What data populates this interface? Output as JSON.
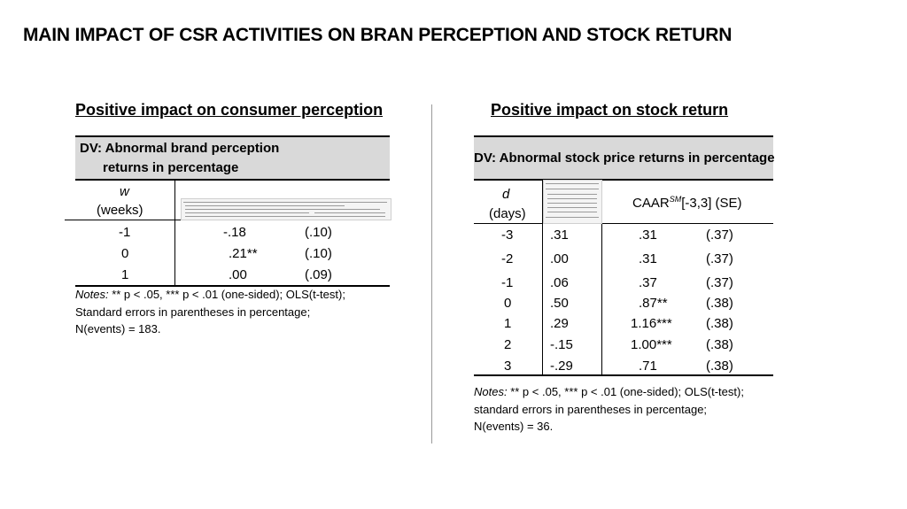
{
  "slide": {
    "title": "MAIN IMPACT OF CSR ACTIVITIES ON BRAN PERCEPTION AND STOCK RETURN"
  },
  "left_panel": {
    "heading": "Positive impact on consumer perception",
    "table_header_line1": "DV: Abnormal brand perception",
    "table_header_line2": "returns in percentage",
    "col1_symbol": "w",
    "col1_unit": "(weeks)",
    "rows": [
      {
        "w": "-1",
        "estimate": "-.18",
        "se": "(.10)"
      },
      {
        "w": "0",
        "estimate": ".21**",
        "se": "(.10)"
      },
      {
        "w": "1",
        "estimate": ".00",
        "se": "(.09)"
      }
    ],
    "notes_label": "Notes:",
    "notes_line1_rest": "** p < .05, *** p < .01 (one-sided); OLS(t-test);",
    "notes_line2": "Standard errors in parentheses in percentage;",
    "notes_line3": "N(events) = 183."
  },
  "right_panel": {
    "heading": "Positive impact on stock return",
    "table_header": "DV: Abnormal stock price returns in percentage",
    "col1_symbol": "d",
    "col1_unit": "(days)",
    "caar_prefix": "CAAR",
    "caar_super": "SM",
    "caar_suffix": "[-3,3]  (SE)",
    "rows": [
      {
        "d": "-3",
        "ar": ".31",
        "caar": ".31",
        "se": "(.37)"
      },
      {
        "d": "-2",
        "ar": ".00",
        "caar": ".31",
        "se": "(.37)"
      },
      {
        "d": "-1",
        "ar": ".06",
        "caar": ".37",
        "se": "(.37)"
      },
      {
        "d": "0",
        "ar": ".50",
        "caar": ".87**",
        "se": "(.38)"
      },
      {
        "d": "1",
        "ar": ".29",
        "caar": "1.16***",
        "se": "(.38)"
      },
      {
        "d": "2",
        "ar": "-.15",
        "caar": "1.00***",
        "se": "(.38)"
      },
      {
        "d": "3",
        "ar": "-.29",
        "caar": ".71",
        "se": "(.38)"
      }
    ],
    "notes_label": "Notes:",
    "notes_line1_rest": "** p < .05, *** p < .01 (one-sided); OLS(t-test);",
    "notes_line2": "standard errors in parentheses in percentage;",
    "notes_line3": "N(events) = 36."
  }
}
